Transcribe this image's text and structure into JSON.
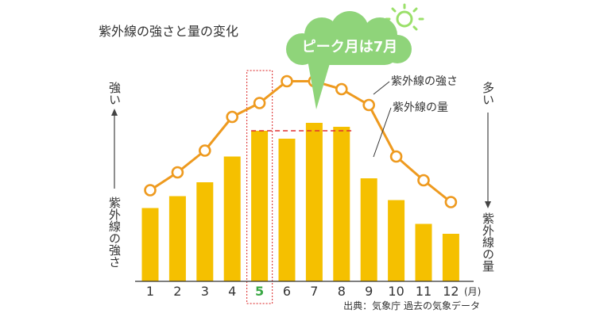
{
  "chart_data": {
    "type": "bar+line",
    "title": "紫外線の強さと量の変化",
    "categories": [
      "1",
      "2",
      "3",
      "4",
      "5",
      "6",
      "7",
      "8",
      "9",
      "10",
      "11",
      "12"
    ],
    "x_unit": "(月)",
    "highlight_category": "5",
    "series": [
      {
        "name": "紫外線の量",
        "type": "bar",
        "values": [
          37,
          43,
          50,
          63,
          76,
          72,
          80,
          78,
          52,
          41,
          29,
          24
        ]
      },
      {
        "name": "紫外線の強さ",
        "type": "line",
        "values": [
          46,
          55,
          66,
          83,
          90,
          101,
          101,
          97,
          89,
          63,
          51,
          40
        ]
      }
    ],
    "left_axis": {
      "top": "強い",
      "bottom": "紫外線の強さ"
    },
    "right_axis": {
      "top": "多い",
      "bottom": "紫外線の量"
    },
    "callout": "ピーク月は7月",
    "reference_line_value": 76,
    "source": "出典：気象庁 過去の気象データ",
    "colors": {
      "bar": "#f5c000",
      "line": "#ee9a1f",
      "highlight_box": "#e04848",
      "reference_line": "#e03030",
      "callout": "#8fd47a",
      "callout_text": "#ffffff",
      "highlight_label": "#3aa845",
      "sun": "#9be06a"
    },
    "icons": {
      "callout_icon": "sun-icon"
    }
  }
}
